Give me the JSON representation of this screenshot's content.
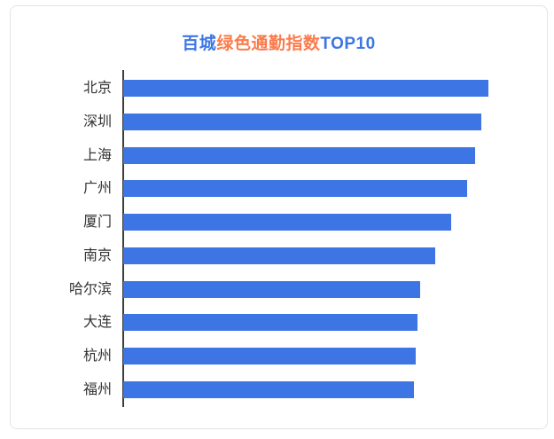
{
  "card": {
    "title": {
      "full_text": "百城绿色通勤指数TOP10",
      "parts": [
        {
          "text": "百城",
          "color": "#3D76E4"
        },
        {
          "text": "绿色通勤指数",
          "color": "#FB7B4C"
        },
        {
          "text": "TOP10",
          "color": "#3D76E4"
        }
      ]
    }
  },
  "chart_data": {
    "type": "bar",
    "orientation": "horizontal",
    "title": "百城绿色通勤指数TOP10",
    "categories": [
      "北京",
      "深圳",
      "上海",
      "广州",
      "厦门",
      "南京",
      "哈尔滨",
      "大连",
      "杭州",
      "福州"
    ],
    "values": [
      100,
      98.1,
      96.4,
      94.2,
      89.8,
      85.4,
      81.3,
      80.7,
      80.2,
      79.7
    ],
    "xlabel": "",
    "ylabel": "",
    "xlim": [
      0,
      110
    ],
    "value_labels_shown": false,
    "value_axis_shown": false,
    "grid": false,
    "legend": false,
    "bar_color": "#3D76E4",
    "axis_line_color": "#3C3C3C",
    "label_color": "#333333"
  }
}
